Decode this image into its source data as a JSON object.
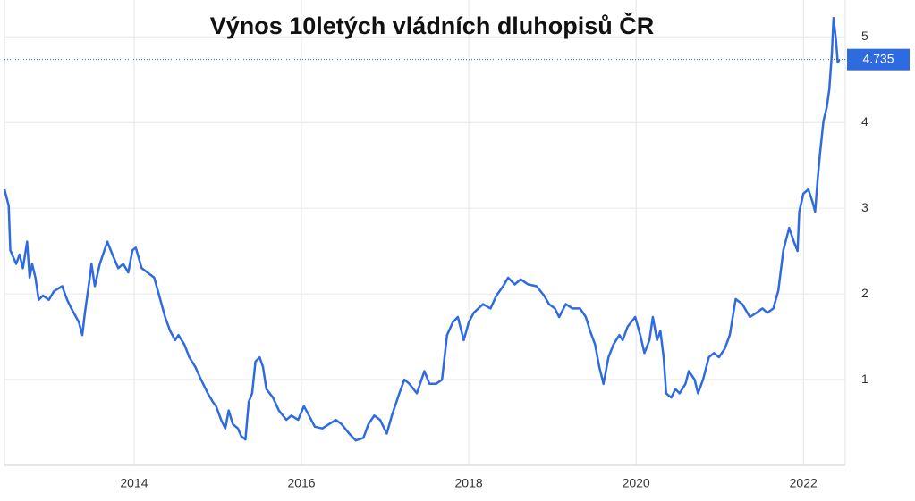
{
  "chart_data": {
    "type": "line",
    "title": "Výnos 10letých vládních dluhopisů ČR",
    "xlim": [
      2012.45,
      2022.5
    ],
    "xticks": [
      2014,
      2016,
      2018,
      2020,
      2022
    ],
    "ylim": [
      0,
      5.43
    ],
    "yticks": [
      1,
      2,
      3,
      4,
      5
    ],
    "grid": true,
    "last_value": 4.735,
    "series": [
      {
        "color": "#2f6be0",
        "x": [
          2012.45,
          2012.5,
          2012.52,
          2012.59,
          2012.63,
          2012.67,
          2012.72,
          2012.75,
          2012.78,
          2012.82,
          2012.86,
          2012.91,
          2012.98,
          2013.04,
          2013.14,
          2013.2,
          2013.25,
          2013.34,
          2013.38,
          2013.41,
          2013.47,
          2013.49,
          2013.53,
          2013.59,
          2013.68,
          2013.74,
          2013.81,
          2013.87,
          2013.93,
          2013.98,
          2014.02,
          2014.09,
          2014.16,
          2014.24,
          2014.3,
          2014.37,
          2014.43,
          2014.49,
          2014.53,
          2014.6,
          2014.66,
          2014.73,
          2014.8,
          2014.88,
          2014.94,
          2014.98,
          2015.04,
          2015.09,
          2015.13,
          2015.18,
          2015.24,
          2015.28,
          2015.33,
          2015.37,
          2015.41,
          2015.45,
          2015.5,
          2015.54,
          2015.58,
          2015.66,
          2015.73,
          2015.82,
          2015.88,
          2015.96,
          2016.03,
          2016.09,
          2016.16,
          2016.25,
          2016.33,
          2016.41,
          2016.48,
          2016.57,
          2016.65,
          2016.74,
          2016.8,
          2016.87,
          2016.94,
          2017.02,
          2017.08,
          2017.17,
          2017.23,
          2017.29,
          2017.38,
          2017.47,
          2017.53,
          2017.61,
          2017.68,
          2017.74,
          2017.81,
          2017.87,
          2017.94,
          2018.0,
          2018.06,
          2018.17,
          2018.26,
          2018.33,
          2018.41,
          2018.47,
          2018.55,
          2018.62,
          2018.71,
          2018.81,
          2018.9,
          2018.96,
          2019.03,
          2019.08,
          2019.16,
          2019.24,
          2019.33,
          2019.4,
          2019.45,
          2019.51,
          2019.56,
          2019.61,
          2019.67,
          2019.73,
          2019.8,
          2019.84,
          2019.9,
          2019.99,
          2020.05,
          2020.1,
          2020.16,
          2020.2,
          2020.25,
          2020.29,
          2020.33,
          2020.36,
          2020.42,
          2020.47,
          2020.52,
          2020.59,
          2020.63,
          2020.7,
          2020.74,
          2020.8,
          2020.87,
          2020.93,
          2020.99,
          2021.06,
          2021.12,
          2021.19,
          2021.27,
          2021.36,
          2021.44,
          2021.51,
          2021.57,
          2021.64,
          2021.7,
          2021.76,
          2021.83,
          2021.89,
          2021.93,
          2021.95,
          2022.0,
          2022.06,
          2022.11,
          2022.14,
          2022.17,
          2022.2,
          2022.24,
          2022.28,
          2022.31,
          2022.34,
          2022.36,
          2022.39,
          2022.41,
          2022.43
        ],
        "values": [
          3.22,
          3.03,
          2.51,
          2.35,
          2.46,
          2.3,
          2.61,
          2.19,
          2.35,
          2.19,
          1.93,
          1.98,
          1.93,
          2.03,
          2.09,
          1.93,
          1.83,
          1.67,
          1.52,
          1.77,
          2.19,
          2.35,
          2.09,
          2.35,
          2.61,
          2.46,
          2.3,
          2.35,
          2.25,
          2.51,
          2.54,
          2.3,
          2.25,
          2.19,
          1.98,
          1.73,
          1.57,
          1.46,
          1.52,
          1.41,
          1.26,
          1.15,
          1.0,
          0.84,
          0.74,
          0.69,
          0.53,
          0.43,
          0.64,
          0.48,
          0.43,
          0.34,
          0.3,
          0.74,
          0.84,
          1.21,
          1.26,
          1.15,
          0.89,
          0.79,
          0.64,
          0.53,
          0.58,
          0.53,
          0.69,
          0.58,
          0.45,
          0.43,
          0.48,
          0.53,
          0.48,
          0.37,
          0.29,
          0.32,
          0.48,
          0.58,
          0.53,
          0.37,
          0.58,
          0.84,
          1.0,
          0.95,
          0.84,
          1.1,
          0.95,
          0.95,
          1.0,
          1.52,
          1.67,
          1.73,
          1.46,
          1.67,
          1.78,
          1.88,
          1.83,
          1.98,
          2.09,
          2.19,
          2.11,
          2.17,
          2.11,
          2.09,
          1.98,
          1.88,
          1.83,
          1.73,
          1.88,
          1.83,
          1.83,
          1.73,
          1.57,
          1.41,
          1.15,
          0.95,
          1.26,
          1.41,
          1.52,
          1.46,
          1.62,
          1.73,
          1.52,
          1.31,
          1.46,
          1.73,
          1.46,
          1.57,
          1.26,
          0.84,
          0.79,
          0.89,
          0.84,
          0.95,
          1.1,
          1.0,
          0.84,
          1.0,
          1.26,
          1.31,
          1.26,
          1.36,
          1.52,
          1.94,
          1.88,
          1.73,
          1.78,
          1.83,
          1.78,
          1.83,
          2.04,
          2.51,
          2.77,
          2.6,
          2.5,
          2.96,
          3.17,
          3.22,
          3.07,
          2.96,
          3.33,
          3.65,
          4.02,
          4.18,
          4.39,
          4.8,
          5.22,
          4.96,
          4.7,
          4.735
        ]
      }
    ]
  }
}
